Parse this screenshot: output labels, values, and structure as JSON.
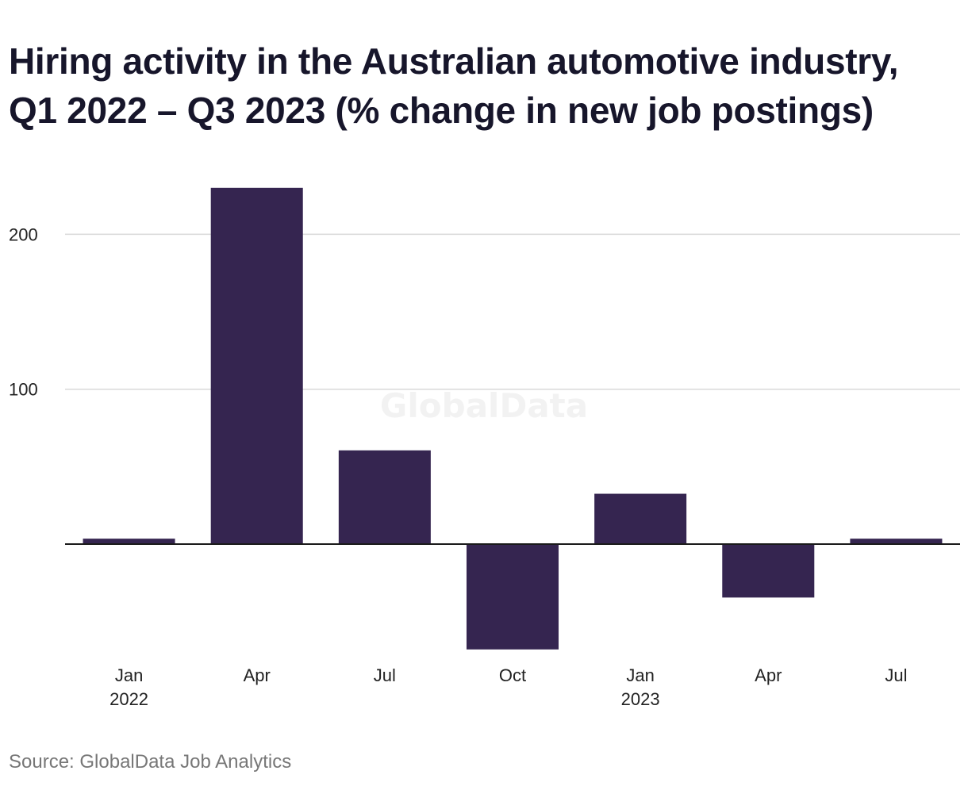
{
  "chart": {
    "title_line1": "Hiring activity in the Australian automotive industry,",
    "title_line2": "Q1 2022 – Q3 2023 (% change in new job postings)",
    "source": "Source: GlobalData Job Analytics",
    "watermark": "GlobalData"
  },
  "chart_data": {
    "type": "bar",
    "title": "Hiring activity in the Australian automotive industry, Q1 2022 – Q3 2023 (% change in new job postings)",
    "categories": [
      "Jan 2022",
      "Apr",
      "Jul",
      "Oct",
      "Jan 2023",
      "Apr",
      "Jul"
    ],
    "x_tick_labels": [
      {
        "line1": "Jan",
        "line2": "2022"
      },
      {
        "line1": "Apr",
        "line2": ""
      },
      {
        "line1": "Jul",
        "line2": ""
      },
      {
        "line1": "Oct",
        "line2": ""
      },
      {
        "line1": "Jan",
        "line2": "2023"
      },
      {
        "line1": "Apr",
        "line2": ""
      },
      {
        "line1": "Jul",
        "line2": ""
      }
    ],
    "values": [
      3.5,
      230,
      60.5,
      -68,
      32.5,
      -34.5,
      3.5
    ],
    "y_ticks": [
      100,
      200
    ],
    "ylim": [
      -75,
      245
    ],
    "grid": true,
    "bar_color": "#352550",
    "gridline_color": "#d9d9d9",
    "xlabel": "",
    "ylabel": ""
  }
}
